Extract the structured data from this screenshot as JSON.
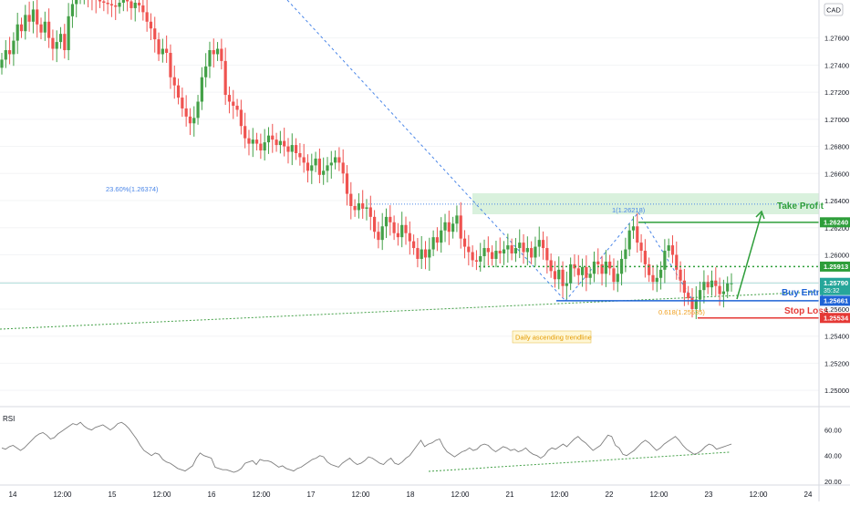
{
  "chart_data": [
    {
      "type": "candlestick",
      "symbol_badge": "CAD",
      "ylim": [
        1.2488,
        1.2788
      ],
      "x_ticks": [
        "14",
        "12:00",
        "15",
        "12:00",
        "16",
        "12:00",
        "17",
        "12:00",
        "18",
        "12:00",
        "21",
        "12:00",
        "22",
        "12:00",
        "23",
        "12:00",
        "24"
      ],
      "y_ticks": [
        "1.27600",
        "1.27400",
        "1.27200",
        "1.27000",
        "1.26800",
        "1.26600",
        "1.26400",
        "1.26200",
        "1.26000",
        "1.25800",
        "1.25600",
        "1.25400",
        "1.25200",
        "1.25000"
      ],
      "price_badges": [
        {
          "value": "1.26240",
          "color": "#2e9e3a"
        },
        {
          "value": "1.25913",
          "color": "#2e9e3a"
        },
        {
          "value": "1.25790",
          "sub": "35:32",
          "color": "#26a69a"
        },
        {
          "value": "1.25661",
          "color": "#1e63d6"
        },
        {
          "value": "1.25534",
          "color": "#e53935"
        }
      ],
      "levels": [
        {
          "name": "Take Profit",
          "price": 1.2624,
          "color": "#2e9e3a"
        },
        {
          "name": "",
          "price": 1.25913,
          "color": "#2e9e3a"
        },
        {
          "name": "Buy Entry",
          "price": 1.25661,
          "color": "#1e63d6"
        },
        {
          "name": "Stop Loss",
          "price": 1.25534,
          "color": "#e53935"
        }
      ],
      "annotations": {
        "fib_23_6": "23.60%(1.26374)",
        "fib_1": "1(1.26218)",
        "fib_0_618": "0.618(1.25535)",
        "trendline_label": "Daily ascending trendline"
      },
      "candle_closes": [
        1.2744,
        1.2751,
        1.2748,
        1.2758,
        1.277,
        1.2765,
        1.2777,
        1.2772,
        1.2781,
        1.277,
        1.2764,
        1.2772,
        1.276,
        1.2752,
        1.2757,
        1.2763,
        1.2751,
        1.2776,
        1.2785,
        1.279,
        1.2791,
        1.2791,
        1.279,
        1.2789,
        1.2788,
        1.2787,
        1.2786,
        1.2785,
        1.2784,
        1.2783,
        1.2786,
        1.2788,
        1.2787,
        1.2782,
        1.2786,
        1.2784,
        1.2779,
        1.2772,
        1.2767,
        1.2759,
        1.2748,
        1.2752,
        1.2749,
        1.2731,
        1.2725,
        1.2716,
        1.2708,
        1.2702,
        1.2697,
        1.2701,
        1.2713,
        1.2731,
        1.2739,
        1.2751,
        1.2748,
        1.2752,
        1.2743,
        1.2718,
        1.2713,
        1.271,
        1.2707,
        1.2695,
        1.2686,
        1.2682,
        1.2685,
        1.2682,
        1.2677,
        1.2683,
        1.2688,
        1.2685,
        1.2681,
        1.2684,
        1.268,
        1.2676,
        1.2681,
        1.2675,
        1.2672,
        1.2668,
        1.2662,
        1.2666,
        1.2671,
        1.2659,
        1.2662,
        1.2666,
        1.2668,
        1.2672,
        1.2668,
        1.266,
        1.2645,
        1.2636,
        1.2633,
        1.2638,
        1.2634,
        1.2635,
        1.2628,
        1.2617,
        1.2611,
        1.2621,
        1.2628,
        1.2624,
        1.2616,
        1.2613,
        1.2622,
        1.2616,
        1.261,
        1.2605,
        1.2597,
        1.2604,
        1.2598,
        1.2604,
        1.2613,
        1.2609,
        1.2618,
        1.2624,
        1.2617,
        1.2623,
        1.2629,
        1.2612,
        1.2606,
        1.2602,
        1.2596,
        1.2595,
        1.2599,
        1.2605,
        1.2602,
        1.2597,
        1.2603,
        1.2601,
        1.2604,
        1.2607,
        1.2601,
        1.2605,
        1.2609,
        1.2602,
        1.2605,
        1.2598,
        1.2606,
        1.2611,
        1.2605,
        1.2596,
        1.2588,
        1.2582,
        1.2589,
        1.2577,
        1.2579,
        1.2593,
        1.259,
        1.2585,
        1.2591,
        1.2583,
        1.2586,
        1.2595,
        1.2593,
        1.2586,
        1.2595,
        1.259,
        1.258,
        1.2586,
        1.2597,
        1.2604,
        1.2618,
        1.2621,
        1.2609,
        1.2603,
        1.2593,
        1.2585,
        1.258,
        1.2583,
        1.2589,
        1.2603,
        1.2607,
        1.26,
        1.2589,
        1.2581,
        1.2572,
        1.2568,
        1.256,
        1.2567,
        1.2574,
        1.258,
        1.2576,
        1.2581,
        1.2577,
        1.2571,
        1.2573,
        1.2579,
        1.2579
      ]
    },
    {
      "type": "line",
      "title": "RSI",
      "ylim": [
        17,
        74
      ],
      "y_ticks": [
        "60.00",
        "40.00",
        "20.00"
      ],
      "values": [
        46,
        45,
        47,
        48,
        46,
        44,
        46,
        49,
        52,
        55,
        57,
        58,
        56,
        53,
        54,
        57,
        59,
        61,
        63,
        65,
        64,
        66,
        63,
        61,
        60,
        62,
        63,
        64,
        62,
        60,
        62,
        65,
        66,
        64,
        61,
        57,
        53,
        48,
        44,
        42,
        40,
        42,
        41,
        37,
        35,
        34,
        32,
        30,
        29,
        28,
        30,
        32,
        38,
        42,
        40,
        39,
        38,
        31,
        30,
        29,
        29,
        28,
        27,
        28,
        30,
        34,
        35,
        36,
        33,
        37,
        36,
        36,
        35,
        33,
        31,
        32,
        30,
        29,
        28,
        30,
        31,
        33,
        35,
        37,
        38,
        40,
        39,
        35,
        33,
        32,
        31,
        34,
        36,
        38,
        35,
        33,
        34,
        36,
        39,
        38,
        36,
        34,
        33,
        36,
        38,
        34,
        33,
        35,
        38,
        40,
        44,
        48,
        52,
        47,
        49,
        50,
        52,
        53,
        47,
        43,
        41,
        39,
        41,
        43,
        44,
        46,
        44,
        45,
        48,
        49,
        48,
        45,
        43,
        45,
        47,
        46,
        44,
        45,
        43,
        44,
        46,
        43,
        41,
        40,
        38,
        40,
        44,
        46,
        45,
        47,
        49,
        47,
        50,
        53,
        55,
        52,
        50,
        47,
        44,
        46,
        48,
        52,
        56,
        55,
        48,
        46,
        41,
        40,
        42,
        44,
        47,
        50,
        52,
        50,
        47,
        44,
        46,
        49,
        51,
        53,
        55,
        52,
        48,
        45,
        43,
        41,
        42,
        44,
        47,
        49,
        48,
        45,
        46,
        47,
        48,
        49
      ]
    }
  ]
}
